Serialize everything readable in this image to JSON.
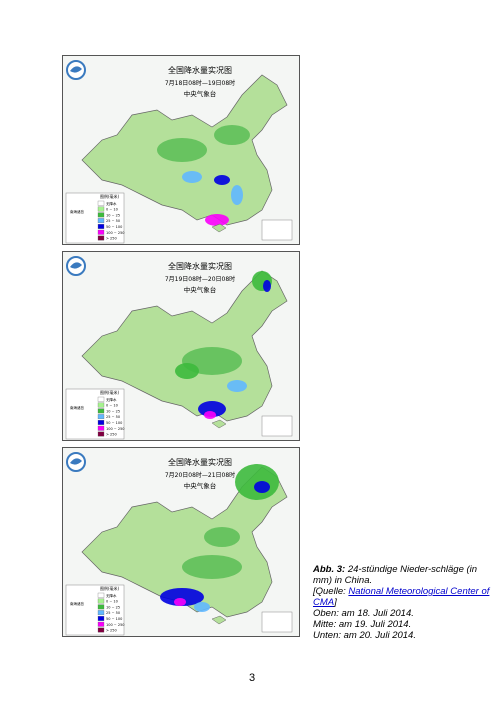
{
  "maps": [
    {
      "title": "全国降水量实况图",
      "period": "7月18日08时—19日08时",
      "agency": "中央气象台"
    },
    {
      "title": "全国降水量实况图",
      "period": "7月19日08时—20日08时",
      "agency": "中央气象台"
    },
    {
      "title": "全国降水量实况图",
      "period": "7月20日08时—21日08时",
      "agency": "中央气象台"
    }
  ],
  "legend": {
    "title": "图例(毫米)",
    "items": [
      "无降水",
      "0 ~ 10",
      "10 ~ 25",
      "25 ~ 50",
      "50 ~ 100",
      "100 ~ 250",
      "> 250"
    ]
  },
  "inset_label": "南海诸岛",
  "caption": {
    "label": "Abb. 3:",
    "text": "24-stündige Nieder-schläge (in mm) in China.",
    "source_prefix": "[Quelle: ",
    "source_link": "National Meteorological Center of CMA",
    "source_suffix": "]",
    "lines": [
      "Oben: am 18. Juli 2014.",
      "Mitte: am 19. Juli 2014.",
      "Unten: am 20. Juli 2014."
    ]
  },
  "page_number": "3"
}
